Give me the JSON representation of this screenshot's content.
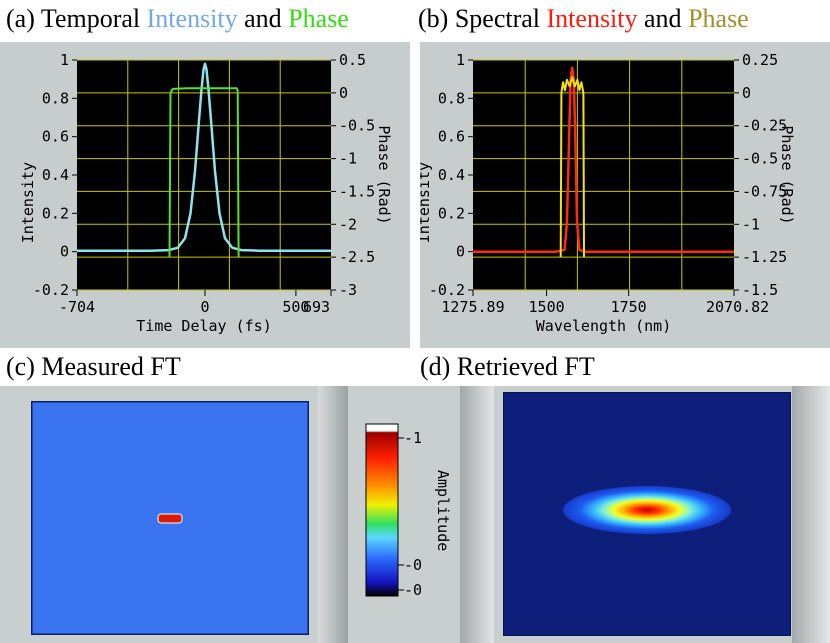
{
  "colors": {
    "temporal_intensity": "#8fe3f0",
    "temporal_phase": "#55e22a",
    "spectral_intensity": "#ff2a10",
    "spectral_phase": "#f2e21a",
    "grid": "#c8c800",
    "plot_bg": "#000000",
    "panel_bg": "#c6cbcc",
    "title_intensity_a": "#6fa8e8",
    "title_phase_a": "#33dd11",
    "title_intensity_b": "#ff1a0a",
    "title_phase_b": "#a0922a",
    "measured_bg": "#3a74f0",
    "retrieved_bg": "#0d1f7a"
  },
  "titles": {
    "a": {
      "prefix": "(a) Temporal ",
      "intensity": "Intensity",
      "mid": " and ",
      "phase": "Phase"
    },
    "b": {
      "prefix": "(b) Spectral ",
      "intensity": "Intensity",
      "mid": " and ",
      "phase": "Phase"
    },
    "c": "(c) Measured FT",
    "d": "(d) Retrieved FT"
  },
  "colorbar": {
    "label": "Amplitude",
    "ticks": [
      "1",
      "0",
      "0"
    ],
    "tick_prefix": "-"
  },
  "chart_data": [
    {
      "id": "temporal",
      "type": "line",
      "title": "Temporal Intensity and Phase",
      "xlabel": "Time Delay (fs)",
      "ylabel": "Intensity",
      "y2label": "Phase (Rad)",
      "xlim": [
        -704,
        693
      ],
      "ylim": [
        -0.2,
        1
      ],
      "y2lim": [
        -3,
        0.5
      ],
      "x_ticks": [
        "-704",
        "0",
        "500",
        "693"
      ],
      "x_tick_values": [
        -704,
        0,
        500,
        693
      ],
      "y_ticks": [
        "-0.2",
        "0",
        "0.2",
        "0.4",
        "0.6",
        "0.8",
        "1"
      ],
      "y_tick_values": [
        -0.2,
        0,
        0.2,
        0.4,
        0.6,
        0.8,
        1
      ],
      "y2_ticks": [
        "-3",
        "-2.5",
        "-2",
        "-1.5",
        "-1",
        "-0.5",
        "0",
        "0.5"
      ],
      "y2_tick_values": [
        -3,
        -2.5,
        -2,
        -1.5,
        -1,
        -0.5,
        0,
        0.5
      ],
      "series": [
        {
          "name": "Intensity",
          "axis": "left",
          "x": [
            -704,
            -300,
            -200,
            -150,
            -110,
            -80,
            -55,
            -35,
            -20,
            -8,
            0,
            8,
            20,
            35,
            55,
            80,
            110,
            150,
            200,
            300,
            693
          ],
          "y": [
            0.005,
            0.005,
            0.008,
            0.02,
            0.07,
            0.2,
            0.42,
            0.66,
            0.84,
            0.95,
            0.98,
            0.95,
            0.84,
            0.66,
            0.42,
            0.2,
            0.07,
            0.02,
            0.008,
            0.005,
            0.005
          ]
        },
        {
          "name": "Phase",
          "axis": "right",
          "x": [
            -195,
            -190,
            -180,
            -175,
            -100,
            0,
            100,
            175,
            180,
            185
          ],
          "y": [
            -2.5,
            0.0,
            0.05,
            0.06,
            0.07,
            0.07,
            0.07,
            0.07,
            0.03,
            -2.5
          ]
        }
      ]
    },
    {
      "id": "spectral",
      "type": "line",
      "title": "Spectral Intensity and Phase",
      "xlabel": "Wavelength (nm)",
      "ylabel": "Intensity",
      "y2label": "Phase (Rad)",
      "xlim": [
        1275.89,
        2070.82
      ],
      "ylim": [
        -0.2,
        1
      ],
      "y2lim": [
        -1.5,
        0.25
      ],
      "x_ticks": [
        "1275.89",
        "1500",
        "1750",
        "2070.82"
      ],
      "x_tick_values": [
        1275.89,
        1500,
        1750,
        2070.82
      ],
      "y_ticks": [
        "-0.2",
        "0",
        "0.2",
        "0.4",
        "0.6",
        "0.8",
        "1"
      ],
      "y_tick_values": [
        -0.2,
        0,
        0.2,
        0.4,
        0.6,
        0.8,
        1
      ],
      "y2_ticks": [
        "-1.5",
        "-1.25",
        "-1",
        "-0.75",
        "-0.5",
        "-0.25",
        "0",
        "0.25"
      ],
      "y2_tick_values": [
        -1.5,
        -1.25,
        -1,
        -0.75,
        -0.5,
        -0.25,
        0,
        0.25
      ],
      "series": [
        {
          "name": "Intensity",
          "axis": "left",
          "x": [
            1275.89,
            1530,
            1555,
            1562,
            1568,
            1573,
            1578,
            1583,
            1588,
            1593,
            1600,
            1615,
            2070.82
          ],
          "y": [
            0.0,
            0.0,
            0.01,
            0.15,
            0.55,
            0.9,
            0.96,
            0.9,
            0.55,
            0.15,
            0.01,
            0.0,
            0.0
          ]
        },
        {
          "name": "Phase",
          "axis": "right",
          "x": [
            1543,
            1545,
            1550,
            1556,
            1562,
            1570,
            1578,
            1586,
            1594,
            1600,
            1606,
            1612,
            1614
          ],
          "y": [
            -1.25,
            0.0,
            0.08,
            0.02,
            0.1,
            0.05,
            0.12,
            0.05,
            0.1,
            0.02,
            0.08,
            0.0,
            -1.25
          ]
        }
      ]
    },
    {
      "id": "measured_ft",
      "type": "heatmap",
      "title": "Measured FT",
      "peak": {
        "x": 0.5,
        "y": 0.5,
        "value": 1
      }
    },
    {
      "id": "retrieved_ft",
      "type": "heatmap",
      "title": "Retrieved FT",
      "peak": {
        "x": 0.5,
        "y": 0.5,
        "value": 1
      }
    }
  ]
}
